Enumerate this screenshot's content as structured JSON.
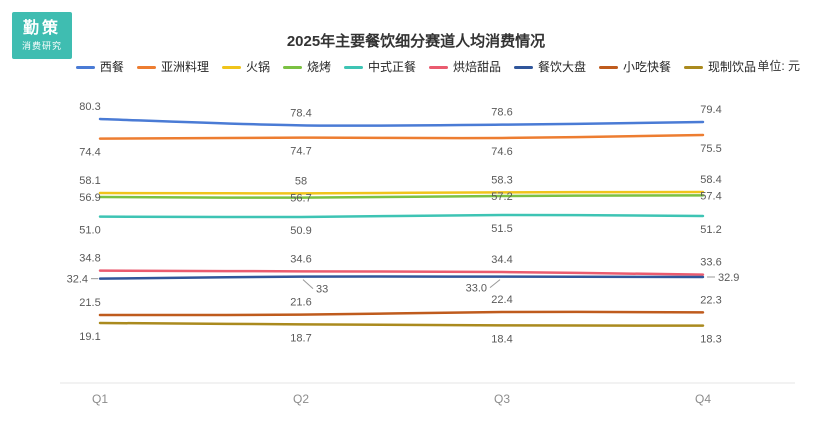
{
  "logo": {
    "line1": "勤策",
    "line2": "消费研究",
    "color": "#3FBDB1"
  },
  "header": {
    "title": "2025年主要餐饮细分赛道人均消费情况",
    "unit_label": "单位: 元"
  },
  "chart_data": {
    "type": "line",
    "title": "2025年主要餐饮细分赛道人均消费情况",
    "unit": "元",
    "categories": [
      "Q1",
      "Q2",
      "Q3",
      "Q4"
    ],
    "ylim": [
      14,
      86
    ],
    "grid": false,
    "legend_position": "top",
    "series": [
      {
        "name": "西餐",
        "color": "#4A7BD5",
        "values": [
          80.3,
          78.4,
          78.6,
          79.4
        ],
        "labels": [
          "80.3",
          "78.4",
          "78.6",
          "79.4"
        ],
        "label_position": "above"
      },
      {
        "name": "亚洲料理",
        "color": "#ED7D31",
        "values": [
          74.4,
          74.7,
          74.6,
          75.5
        ],
        "labels": [
          "74.4",
          "74.7",
          "74.6",
          "75.5"
        ],
        "label_position": "below"
      },
      {
        "name": "火锅",
        "color": "#F0C41B",
        "values": [
          58.1,
          58.0,
          58.3,
          58.4
        ],
        "labels": [
          "58.1",
          "58",
          "58.3",
          "58.4"
        ],
        "label_position": "above"
      },
      {
        "name": "烧烤",
        "color": "#7BC142",
        "values": [
          56.9,
          56.7,
          57.2,
          57.4
        ],
        "labels": [
          "56.9",
          "56.7",
          "57.2",
          "57.4"
        ],
        "label_position": "on"
      },
      {
        "name": "中式正餐",
        "color": "#3EC4B4",
        "values": [
          51.0,
          50.9,
          51.5,
          51.2
        ],
        "labels": [
          "51.0",
          "50.9",
          "51.5",
          "51.2"
        ],
        "label_position": "below"
      },
      {
        "name": "烘焙甜品",
        "color": "#EA5B6F",
        "values": [
          34.8,
          34.6,
          34.4,
          33.6
        ],
        "labels": [
          "34.8",
          "34.6",
          "34.4",
          "33.6"
        ],
        "label_position": "above"
      },
      {
        "name": "餐饮大盘",
        "color": "#30569B",
        "values": [
          32.4,
          33.0,
          33.0,
          32.9
        ],
        "labels": [
          "32.4",
          "33",
          "33.0",
          "32.9"
        ],
        "label_position": "callout",
        "callouts": [
          "left-dash",
          "leader-right",
          "leader-left",
          "right-dash"
        ]
      },
      {
        "name": "小吃快餐",
        "color": "#BF5B1D",
        "values": [
          21.5,
          21.6,
          22.4,
          22.3
        ],
        "labels": [
          "21.5",
          "21.6",
          "22.4",
          "22.3"
        ],
        "label_position": "above"
      },
      {
        "name": "现制饮品",
        "color": "#AA8A1E",
        "values": [
          19.1,
          18.7,
          18.4,
          18.3
        ],
        "labels": [
          "19.1",
          "18.7",
          "18.4",
          "18.3"
        ],
        "label_position": "below"
      }
    ]
  }
}
